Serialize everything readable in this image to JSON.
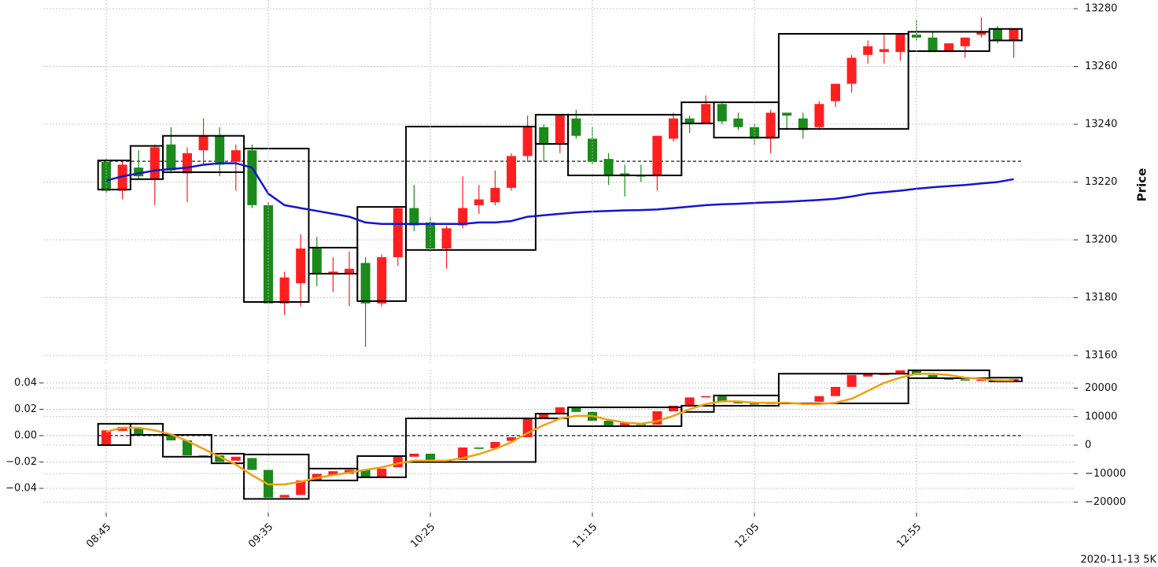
{
  "chart_data": [
    {
      "type": "candlestick",
      "ylabel": "Price",
      "open": [
        13227,
        13217,
        13225,
        13221,
        13233,
        13223,
        13231,
        13236,
        13227,
        13231,
        13212,
        13178,
        13185,
        13197,
        13188,
        13188,
        13192,
        13178,
        13194,
        13211,
        13206,
        13197,
        13205,
        13212,
        13213,
        13218,
        13229,
        13239,
        13233,
        13242,
        13235,
        13228,
        13223,
        13222.3,
        13222,
        13235,
        13242,
        13240,
        13247,
        13242,
        13239,
        13235,
        13244,
        13242,
        13239,
        13248,
        13254,
        13264,
        13265,
        13265,
        13271,
        13270,
        13265,
        13267,
        13271,
        13273,
        13269
      ],
      "high": [
        13228,
        13227,
        13231,
        13233,
        13239,
        13232,
        13242,
        13239,
        13233,
        13233,
        13213,
        13189,
        13202,
        13201,
        13194,
        13196,
        13194,
        13195,
        13211,
        13219,
        13208,
        13205,
        13222,
        13219,
        13224,
        13230,
        13243,
        13240,
        13243,
        13245,
        13239,
        13230,
        13226,
        13226,
        13236,
        13244,
        13243,
        13250,
        13248,
        13244,
        13240,
        13245,
        13244,
        13244,
        13248,
        13254,
        13264,
        13269,
        13271,
        13271,
        13276,
        13272,
        13268,
        13270,
        13277,
        13274,
        13273
      ],
      "low": [
        13216,
        13214,
        13221,
        13212,
        13223,
        13213,
        13226,
        13222,
        13217,
        13211,
        13178,
        13174,
        13177,
        13184,
        13182,
        13177,
        13163,
        13177,
        13191,
        13203,
        13196,
        13190,
        13204,
        13209,
        13212,
        13217,
        13227,
        13227,
        13230,
        13235,
        13226,
        13219,
        13215,
        13220,
        13217,
        13234,
        13237,
        13240,
        13240,
        13238,
        13233,
        13230,
        13238,
        13235,
        13238,
        13246,
        13251,
        13261,
        13261,
        13262,
        13269,
        13265,
        13265,
        13263,
        13270,
        13268,
        13263
      ],
      "close": [
        13217,
        13226,
        13222,
        13232,
        13224,
        13230,
        13236,
        13226,
        13231,
        13212,
        13178,
        13187,
        13197,
        13188,
        13189,
        13190,
        13178,
        13194,
        13211,
        13205,
        13197,
        13204,
        13211,
        13214,
        13218,
        13229,
        13239,
        13233,
        13243,
        13236,
        13227,
        13222,
        13222,
        13222,
        13236,
        13242,
        13240,
        13247,
        13241,
        13239,
        13235,
        13244,
        13243,
        13238,
        13247,
        13254,
        13263,
        13267,
        13266,
        13271,
        13270,
        13265,
        13268,
        13270,
        13272,
        13269,
        13273
      ],
      "up_color": "#ff1f1f",
      "down_color": "#1a8a1a",
      "lines": [
        {
          "color": "#1515cc",
          "values": [
            13220.5,
            13222,
            13223,
            13224,
            13224.5,
            13225,
            13226,
            13226.5,
            13226.5,
            13225,
            13216,
            13212,
            13211,
            13210,
            13209,
            13208,
            13206,
            13205.5,
            13205.5,
            13205.5,
            13205.5,
            13205.5,
            13205.5,
            13206,
            13206,
            13206.5,
            13208,
            13208.5,
            13209,
            13209.5,
            13209.8,
            13210,
            13210.2,
            13210.3,
            13210.5,
            13211,
            13211.5,
            13212,
            13212.3,
            13212.5,
            13212.8,
            13213,
            13213.2,
            13213.5,
            13213.8,
            13214.2,
            13215,
            13216,
            13216.5,
            13217,
            13217.7,
            13218.2,
            13218.6,
            13219,
            13219.5,
            13220,
            13221
          ]
        }
      ],
      "boxes": [
        {
          "start": 0,
          "end": 1,
          "high": 13227.5,
          "low": 13217.4
        },
        {
          "start": 2,
          "end": 3,
          "high": 13232.5,
          "low": 13221
        },
        {
          "start": 4,
          "end": 8,
          "high": 13236,
          "low": 13223.4
        },
        {
          "start": 9,
          "end": 12,
          "high": 13231.6,
          "low": 13178.5
        },
        {
          "start": 13,
          "end": 15,
          "high": 13197.3,
          "low": 13188.3
        },
        {
          "start": 16,
          "end": 18,
          "high": 13211.4,
          "low": 13178.8
        },
        {
          "start": 19,
          "end": 26,
          "high": 13239.2,
          "low": 13196.5
        },
        {
          "start": 27,
          "end": 28,
          "high": 13243.3,
          "low": 13233.2
        },
        {
          "start": 29,
          "end": 35,
          "high": 13243.3,
          "low": 13222.3
        },
        {
          "start": 36,
          "end": 37,
          "high": 13247.6,
          "low": 13240.3
        },
        {
          "start": 38,
          "end": 41,
          "high": 13247.6,
          "low": 13235.4
        },
        {
          "start": 42,
          "end": 49,
          "high": 13271.3,
          "low": 13238.4
        },
        {
          "start": 50,
          "end": 54,
          "high": 13272,
          "low": 13265.3
        },
        {
          "start": 55,
          "end": 56,
          "high": 13273,
          "low": 13269
        }
      ],
      "hline": 13227.2,
      "ylim": [
        13157,
        13283
      ],
      "yticks": [
        13160,
        13180,
        13200,
        13220,
        13240,
        13260,
        13280
      ],
      "grid": true
    },
    {
      "type": "candlestick",
      "categories": [
        "08:45",
        null,
        null,
        null,
        null,
        null,
        null,
        null,
        null,
        null,
        "09:35",
        null,
        null,
        null,
        null,
        null,
        null,
        null,
        null,
        null,
        "10:25",
        null,
        null,
        null,
        null,
        null,
        null,
        null,
        null,
        null,
        "11:15",
        null,
        null,
        null,
        null,
        null,
        null,
        null,
        null,
        null,
        "12:05",
        null,
        null,
        null,
        null,
        null,
        null,
        null,
        null,
        null,
        "12:55",
        null,
        null,
        null,
        null,
        null,
        null
      ],
      "open": [
        -0.0066,
        0.0036,
        0.006,
        0.0008,
        0.001,
        -0.0036,
        -0.015,
        -0.015,
        -0.019,
        -0.017,
        -0.026,
        -0.047,
        -0.045,
        -0.034,
        -0.03,
        -0.029,
        -0.026,
        -0.032,
        -0.024,
        -0.016,
        -0.0137,
        -0.02,
        -0.0185,
        -0.009,
        -0.0096,
        -0.004,
        -0.0012,
        0.0137,
        0.0167,
        0.0215,
        0.018,
        0.0113,
        0.0078,
        0.009,
        0.0084,
        0.0185,
        0.0227,
        0.029,
        0.03,
        0.026,
        0.0245,
        0.024,
        0.025,
        0.0245,
        0.0257,
        0.03,
        0.037,
        0.0448,
        0.046,
        0.0466,
        0.0496,
        0.046,
        0.044,
        0.0427,
        0.042,
        0.0427,
        0.0415
      ],
      "close": [
        0.004,
        0.0066,
        0.001,
        0,
        -0.0036,
        -0.015,
        -0.0155,
        -0.02,
        -0.016,
        -0.026,
        -0.047,
        -0.045,
        -0.034,
        -0.029,
        -0.027,
        -0.026,
        -0.032,
        -0.025,
        -0.0155,
        -0.0137,
        -0.019,
        -0.0185,
        -0.009,
        -0.01,
        -0.0048,
        -0.0012,
        0.0137,
        0.0167,
        0.0215,
        0.018,
        0.0113,
        0.0078,
        0.0096,
        0.008,
        0.0185,
        0.0227,
        0.029,
        0.03,
        0.0257,
        0.0245,
        0.024,
        0.025,
        0.0245,
        0.025,
        0.03,
        0.037,
        0.046,
        0.0466,
        0.047,
        0.0496,
        0.046,
        0.0436,
        0.0424,
        0.042,
        0.0424,
        0.0415,
        0.043
      ],
      "up_color": "#ff1f1f",
      "down_color": "#1a8a1a",
      "lines": [
        {
          "color": "#f0a010",
          "values": [
            0.003,
            0.006,
            0.006,
            0.004,
            0.001,
            -0.004,
            -0.01,
            -0.016,
            -0.022,
            -0.03,
            -0.037,
            -0.037,
            -0.035,
            -0.032,
            -0.03,
            -0.028,
            -0.026,
            -0.024,
            -0.021,
            -0.019,
            -0.019,
            -0.019,
            -0.017,
            -0.014,
            -0.01,
            -0.005,
            0.002,
            0.008,
            0.013,
            0.015,
            0.015,
            0.012,
            0.01,
            0.009,
            0.011,
            0.015,
            0.02,
            0.024,
            0.026,
            0.026,
            0.025,
            0.025,
            0.025,
            0.024,
            0.024,
            0.025,
            0.028,
            0.034,
            0.04,
            0.044,
            0.047,
            0.047,
            0.046,
            0.044,
            0.043,
            0.042,
            0.042
          ]
        }
      ],
      "boxes": [
        {
          "start": 0,
          "end": 1,
          "high": 0.009,
          "low": -0.0072
        },
        {
          "start": 2,
          "end": 3,
          "high": 0.009,
          "low": 0.0006
        },
        {
          "start": 4,
          "end": 6,
          "high": 0.0006,
          "low": -0.016
        },
        {
          "start": 7,
          "end": 8,
          "high": -0.0137,
          "low": -0.021
        },
        {
          "start": 9,
          "end": 12,
          "high": -0.0143,
          "low": -0.048
        },
        {
          "start": 13,
          "end": 15,
          "high": -0.025,
          "low": -0.034
        },
        {
          "start": 16,
          "end": 18,
          "high": -0.0155,
          "low": -0.0316
        },
        {
          "start": 19,
          "end": 26,
          "high": 0.0131,
          "low": -0.02
        },
        {
          "start": 27,
          "end": 28,
          "high": 0.0167,
          "low": 0.0131
        },
        {
          "start": 29,
          "end": 35,
          "high": 0.0215,
          "low": 0.0072
        },
        {
          "start": 36,
          "end": 37,
          "high": 0.0227,
          "low": 0.018
        },
        {
          "start": 38,
          "end": 41,
          "high": 0.0305,
          "low": 0.0227
        },
        {
          "start": 42,
          "end": 49,
          "high": 0.047,
          "low": 0.0245
        },
        {
          "start": 50,
          "end": 54,
          "high": 0.0496,
          "low": 0.0436
        },
        {
          "start": 55,
          "end": 56,
          "high": 0.044,
          "low": 0.0412
        }
      ],
      "hline": 0,
      "ylim": [
        -0.0585,
        0.0501
      ],
      "yticks": [
        {
          "value": -0.04,
          "label": "−0.04"
        },
        {
          "value": -0.02,
          "label": "−0.02"
        },
        {
          "value": 0,
          "label": "0.00"
        },
        0.02,
        0.04
      ],
      "y2lim": [
        -23724,
        26483
      ],
      "y2ticks": [
        {
          "value": -20000,
          "label": "−20000"
        },
        {
          "value": -10000,
          "label": "−10000"
        },
        0,
        10000,
        20000
      ],
      "grid": true
    }
  ],
  "footer": "2020-11-13 5K"
}
